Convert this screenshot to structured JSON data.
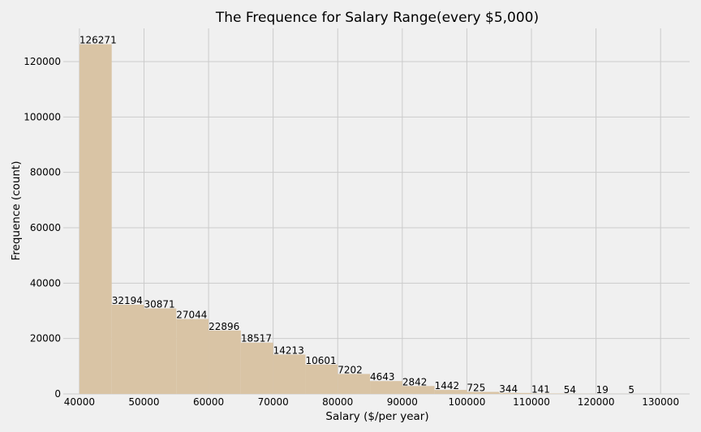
{
  "chart_data": {
    "type": "bar",
    "title": "The Frequence for Salary Range(every $5,000)",
    "xlabel": "Salary ($/per year)",
    "ylabel": "Frequence (count)",
    "bin_width": 5000,
    "bin_starts": [
      40000,
      45000,
      50000,
      55000,
      60000,
      65000,
      70000,
      75000,
      80000,
      85000,
      90000,
      95000,
      100000,
      105000,
      110000,
      115000,
      120000,
      125000
    ],
    "values": [
      126271,
      32194,
      30871,
      27044,
      22896,
      18517,
      14213,
      10601,
      7202,
      4643,
      2842,
      1442,
      725,
      344,
      141,
      54,
      19,
      5
    ],
    "xticks": [
      40000,
      50000,
      60000,
      70000,
      80000,
      90000,
      100000,
      110000,
      120000,
      130000
    ],
    "yticks": [
      0,
      20000,
      40000,
      60000,
      80000,
      100000,
      120000
    ],
    "xlim": [
      37500,
      134500
    ],
    "ylim": [
      0,
      132000
    ],
    "grid": true,
    "colors": {
      "bar": "#d9c4a5",
      "grid": "#cbcbcb",
      "background": "#f0f0f0"
    }
  }
}
